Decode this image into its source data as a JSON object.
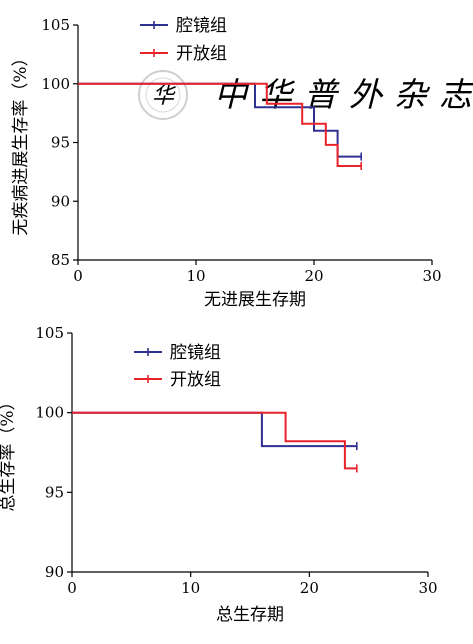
{
  "watermark": {
    "text": "中华普外杂志",
    "logo_glyph": "华"
  },
  "chart_data": [
    {
      "type": "line",
      "step": true,
      "title": "",
      "xlabel": "无进展生存期",
      "ylabel": "无疾病进展生存率（%）",
      "xlim": [
        0,
        30
      ],
      "ylim": [
        85,
        105
      ],
      "x_ticks": [
        0,
        10,
        20,
        30
      ],
      "y_ticks": [
        85,
        90,
        95,
        100,
        105
      ],
      "grid": false,
      "legend": "top",
      "series": [
        {
          "name": "腔镜组",
          "color": "#2e3192",
          "points": [
            [
              0,
              100
            ],
            [
              15,
              100
            ],
            [
              15,
              98
            ],
            [
              20,
              98
            ],
            [
              20,
              96
            ],
            [
              22,
              96
            ],
            [
              22,
              93.8
            ],
            [
              24,
              93.8
            ]
          ],
          "censored": [
            [
              24,
              93.8
            ]
          ]
        },
        {
          "name": "开放组",
          "color": "#e8242a",
          "points": [
            [
              0,
              100
            ],
            [
              16,
              100
            ],
            [
              16,
              98.3
            ],
            [
              19,
              98.3
            ],
            [
              19,
              96.6
            ],
            [
              21,
              96.6
            ],
            [
              21,
              94.8
            ],
            [
              22,
              94.8
            ],
            [
              22,
              93
            ],
            [
              24,
              93
            ]
          ],
          "censored": [
            [
              24,
              93
            ]
          ]
        }
      ]
    },
    {
      "type": "line",
      "step": true,
      "title": "",
      "xlabel": "总生存期",
      "ylabel": "总生存率（%）",
      "xlim": [
        0,
        30
      ],
      "ylim": [
        90,
        105
      ],
      "x_ticks": [
        0,
        10,
        20,
        30
      ],
      "y_ticks": [
        90,
        95,
        100,
        105
      ],
      "grid": false,
      "legend": "top-center",
      "series": [
        {
          "name": "腔镜组",
          "color": "#2e3192",
          "points": [
            [
              0,
              100
            ],
            [
              16,
              100
            ],
            [
              16,
              97.9
            ],
            [
              24,
              97.9
            ]
          ],
          "censored": [
            [
              24,
              97.9
            ]
          ]
        },
        {
          "name": "开放组",
          "color": "#e8242a",
          "points": [
            [
              0,
              100
            ],
            [
              18,
              100
            ],
            [
              18,
              98.2
            ],
            [
              23,
              98.2
            ],
            [
              23,
              96.5
            ],
            [
              24,
              96.5
            ]
          ],
          "censored": [
            [
              24,
              96.5
            ]
          ]
        }
      ]
    }
  ]
}
